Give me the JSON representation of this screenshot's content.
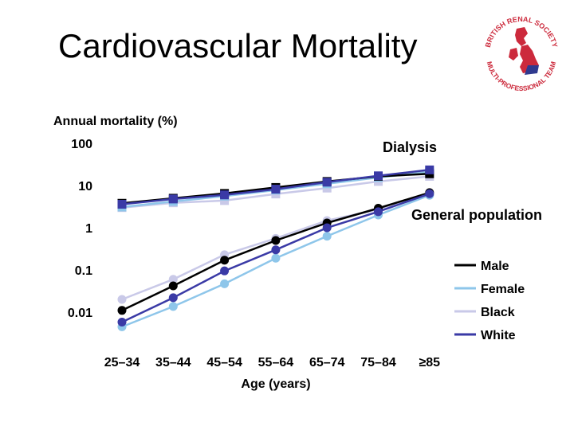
{
  "slide": {
    "title": "Cardiovascular Mortality"
  },
  "logo": {
    "text_top": "BRITISH RENAL SOCIETY",
    "text_bottom": "MULTI-PROFESSIONAL TEAM"
  },
  "chart_data": {
    "type": "line",
    "ylabel": "Annual mortality (%)",
    "xlabel": "Age (years)",
    "y_scale": "log",
    "ylim": [
      0.003,
      100
    ],
    "y_ticks": [
      {
        "value": 100,
        "label": "100"
      },
      {
        "value": 10,
        "label": "10"
      },
      {
        "value": 1,
        "label": "1"
      },
      {
        "value": 0.1,
        "label": "0.1"
      },
      {
        "value": 0.01,
        "label": "0.01"
      }
    ],
    "categories": [
      "25–34",
      "35–44",
      "45–54",
      "55–64",
      "65–74",
      "75–84",
      "≥85"
    ],
    "grid": false,
    "legend_position": "bottom-right",
    "annotations": [
      "Dialysis",
      "General population"
    ],
    "colors": {
      "Male": "#000000",
      "Female": "#8ec6ea",
      "Black": "#c9c9e8",
      "White": "#3a3aa6"
    },
    "series": [
      {
        "name": "Male",
        "group": "Dialysis",
        "values": [
          3.8,
          5.0,
          6.5,
          9.0,
          12.5,
          16.5,
          19.0
        ]
      },
      {
        "name": "Female",
        "group": "Dialysis",
        "values": [
          3.1,
          4.2,
          5.6,
          7.8,
          11.0,
          15.5,
          21.0
        ]
      },
      {
        "name": "Black",
        "group": "Dialysis",
        "values": [
          3.0,
          3.9,
          4.4,
          6.3,
          8.7,
          12.5,
          16.5
        ]
      },
      {
        "name": "White",
        "group": "Dialysis",
        "values": [
          3.6,
          4.8,
          6.0,
          8.2,
          12.0,
          17.0,
          23.5
        ]
      },
      {
        "name": "Male",
        "group": "General population",
        "values": [
          0.011,
          0.042,
          0.17,
          0.5,
          1.3,
          2.9,
          6.8
        ]
      },
      {
        "name": "Female",
        "group": "General population",
        "values": [
          0.0045,
          0.0136,
          0.047,
          0.19,
          0.63,
          2.0,
          5.9
        ]
      },
      {
        "name": "Black",
        "group": "General population",
        "values": [
          0.02,
          0.06,
          0.23,
          0.56,
          1.48,
          2.7,
          5.9
        ]
      },
      {
        "name": "White",
        "group": "General population",
        "values": [
          0.0058,
          0.022,
          0.095,
          0.3,
          1.0,
          2.4,
          6.4
        ]
      }
    ]
  }
}
